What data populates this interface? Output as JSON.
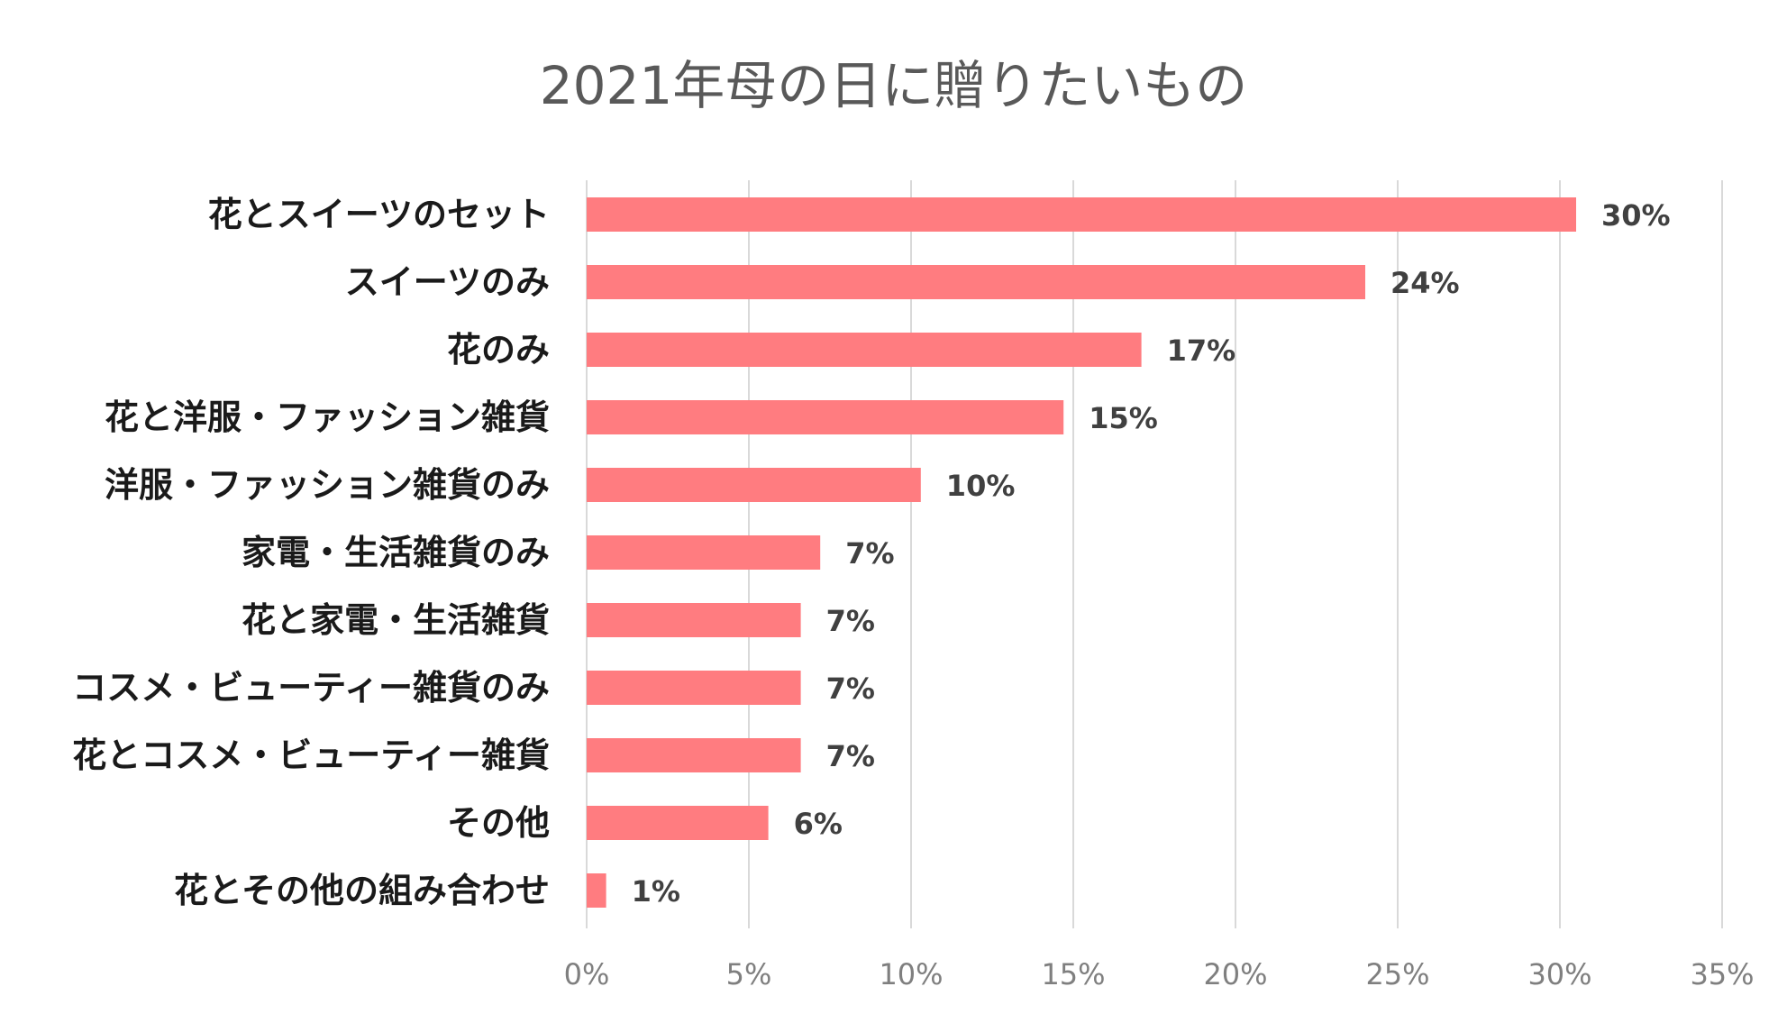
{
  "chart_data": {
    "type": "bar",
    "orientation": "horizontal",
    "title": "2021年母の日に贈りたいもの",
    "categories": [
      "花とスイーツのセット",
      "スイーツのみ",
      "花のみ",
      "花と洋服・ファッション雑貨",
      "洋服・ファッション雑貨のみ",
      "家電・生活雑貨のみ",
      "花と家電・生活雑貨",
      "コスメ・ビューティー雑貨のみ",
      "花とコスメ・ビューティー雑貨",
      "その他",
      "花とその他の組み合わせ"
    ],
    "values": [
      30.5,
      24.0,
      17.1,
      14.7,
      10.3,
      7.2,
      6.6,
      6.6,
      6.6,
      5.6,
      0.6
    ],
    "value_labels": [
      "30%",
      "24%",
      "17%",
      "15%",
      "10%",
      "7%",
      "7%",
      "7%",
      "7%",
      "6%",
      "1%"
    ],
    "xlim": [
      0,
      35
    ],
    "xticks": [
      0,
      5,
      10,
      15,
      20,
      25,
      30,
      35
    ],
    "xtick_labels": [
      "0%",
      "5%",
      "10%",
      "15%",
      "20%",
      "25%",
      "30%",
      "35%"
    ],
    "xlabel": "",
    "ylabel": "",
    "grid": "vertical",
    "legend": "none",
    "bar_color": "#ff7c80",
    "grid_color": "#d9d9d9"
  }
}
